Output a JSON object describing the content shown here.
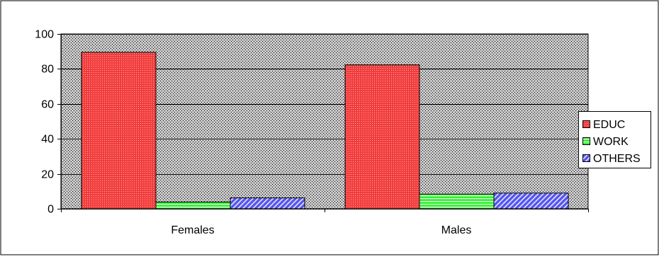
{
  "chart_data": {
    "type": "bar",
    "categories": [
      "Females",
      "Males"
    ],
    "series": [
      {
        "name": "EDUC",
        "values": [
          89.5,
          82.3
        ],
        "color": "#f23c3c",
        "pattern": "dotted"
      },
      {
        "name": "WORK",
        "values": [
          3.8,
          8.4
        ],
        "color": "#33ee33",
        "pattern": "horizontal-lines"
      },
      {
        "name": "OTHERS",
        "values": [
          6.2,
          9.0
        ],
        "color": "#5555ee",
        "pattern": "diagonal-lines"
      }
    ],
    "ylim": [
      0,
      100
    ],
    "yticks": [
      0,
      20,
      40,
      60,
      80,
      100
    ],
    "xlabel": "",
    "ylabel": "",
    "title": "",
    "grid": true,
    "legend_position": "right",
    "plot_background": "dotted-gray"
  }
}
